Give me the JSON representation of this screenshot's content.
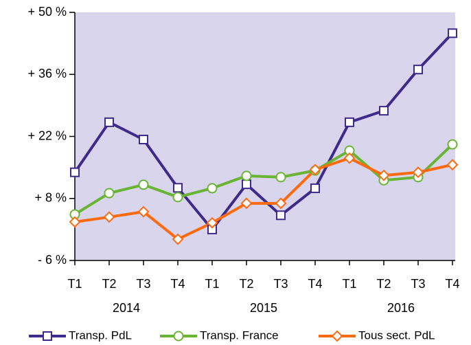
{
  "chart_data": {
    "type": "line",
    "categories": [
      "T1",
      "T2",
      "T3",
      "T4",
      "T1",
      "T2",
      "T3",
      "T4",
      "T1",
      "T2",
      "T3",
      "T4"
    ],
    "year_labels": [
      "2014",
      "2015",
      "2016"
    ],
    "series": [
      {
        "name": "Transp. PdL",
        "color": "#3d2a8c",
        "marker": "square",
        "values": [
          13.9,
          25.2,
          21.3,
          10.4,
          1.0,
          11.2,
          4.2,
          10.3,
          25.2,
          27.8,
          37.1,
          45.3
        ]
      },
      {
        "name": "Transp. France",
        "color": "#6ab434",
        "marker": "circle",
        "values": [
          4.4,
          9.2,
          11.1,
          8.3,
          10.3,
          13.1,
          12.8,
          14.3,
          18.8,
          12.1,
          12.8,
          20.2
        ]
      },
      {
        "name": "Tous sect. PdL",
        "color": "#ff6a0f",
        "marker": "diamond",
        "values": [
          2.7,
          3.8,
          5.0,
          -1.2,
          2.5,
          6.9,
          6.9,
          14.5,
          17.1,
          13.2,
          13.9,
          15.6
        ]
      }
    ],
    "ylim": [
      -6,
      50
    ],
    "yticks": [
      {
        "value": -6,
        "label": "- 6 %"
      },
      {
        "value": 8,
        "label": "+ 8 %"
      },
      {
        "value": 22,
        "label": "+ 22 %"
      },
      {
        "value": 36,
        "label": "+ 36 %"
      },
      {
        "value": 50,
        "label": "+ 50 %"
      }
    ],
    "background": "#d9d5ec",
    "legend": "bottom"
  }
}
